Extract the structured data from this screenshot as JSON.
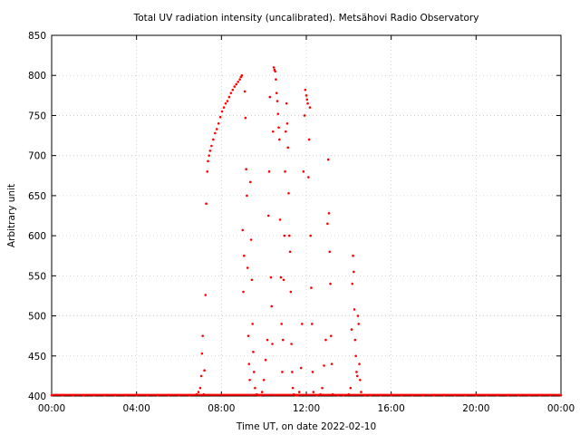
{
  "chart_data": {
    "type": "scatter",
    "title": "Total UV radiation intensity (uncalibrated). Metsähovi Radio Observatory",
    "xlabel": "Time UT, on date 2022-02-10",
    "ylabel": "Arbitrary unit",
    "xlim": [
      "00:00",
      "24:00"
    ],
    "ylim": [
      400,
      850
    ],
    "x_ticks": [
      "00:00",
      "04:00",
      "08:00",
      "12:00",
      "16:00",
      "20:00",
      "00:00"
    ],
    "y_ticks": [
      400,
      450,
      500,
      550,
      600,
      650,
      700,
      750,
      800,
      850
    ],
    "grid": true,
    "series": [
      {
        "color": "#ff0000",
        "marker": "dot",
        "points": [
          [
            "00:00",
            401
          ],
          [
            "00:30",
            401
          ],
          [
            "01:00",
            401
          ],
          [
            "01:30",
            401
          ],
          [
            "02:00",
            401
          ],
          [
            "02:30",
            401
          ],
          [
            "03:00",
            401
          ],
          [
            "03:30",
            401
          ],
          [
            "04:00",
            401
          ],
          [
            "04:30",
            401
          ],
          [
            "05:00",
            401
          ],
          [
            "05:30",
            401
          ],
          [
            "06:00",
            401
          ],
          [
            "06:30",
            401
          ],
          [
            "06:50",
            402
          ],
          [
            "06:55",
            405
          ],
          [
            "07:00",
            410
          ],
          [
            "07:03",
            425
          ],
          [
            "07:05",
            453
          ],
          [
            "07:07",
            475
          ],
          [
            "07:10",
            402
          ],
          [
            "07:12",
            432
          ],
          [
            "07:15",
            526
          ],
          [
            "07:17",
            640
          ],
          [
            "07:20",
            680
          ],
          [
            "07:22",
            693
          ],
          [
            "07:25",
            700
          ],
          [
            "07:28",
            706
          ],
          [
            "07:32",
            712
          ],
          [
            "07:37",
            720
          ],
          [
            "07:42",
            728
          ],
          [
            "07:47",
            733
          ],
          [
            "07:52",
            740
          ],
          [
            "07:57",
            748
          ],
          [
            "08:02",
            755
          ],
          [
            "08:07",
            760
          ],
          [
            "08:12",
            765
          ],
          [
            "08:17",
            768
          ],
          [
            "08:22",
            773
          ],
          [
            "08:27",
            778
          ],
          [
            "08:32",
            782
          ],
          [
            "08:37",
            786
          ],
          [
            "08:42",
            789
          ],
          [
            "08:47",
            792
          ],
          [
            "08:52",
            795
          ],
          [
            "08:55",
            798
          ],
          [
            "08:58",
            800
          ],
          [
            "09:00",
            607
          ],
          [
            "09:02",
            530
          ],
          [
            "09:04",
            575
          ],
          [
            "09:06",
            780
          ],
          [
            "09:08",
            747
          ],
          [
            "09:10",
            683
          ],
          [
            "09:12",
            650
          ],
          [
            "09:14",
            560
          ],
          [
            "09:16",
            475
          ],
          [
            "09:18",
            440
          ],
          [
            "09:20",
            420
          ],
          [
            "09:22",
            667
          ],
          [
            "09:24",
            595
          ],
          [
            "09:26",
            545
          ],
          [
            "09:28",
            490
          ],
          [
            "09:30",
            455
          ],
          [
            "09:32",
            430
          ],
          [
            "09:35",
            410
          ],
          [
            "09:40",
            402
          ],
          [
            "09:45",
            401
          ],
          [
            "09:50",
            401
          ],
          [
            "09:55",
            405
          ],
          [
            "10:00",
            420
          ],
          [
            "10:05",
            445
          ],
          [
            "10:10",
            470
          ],
          [
            "10:13",
            625
          ],
          [
            "10:15",
            680
          ],
          [
            "10:17",
            773
          ],
          [
            "10:20",
            548
          ],
          [
            "10:22",
            512
          ],
          [
            "10:24",
            465
          ],
          [
            "10:26",
            730
          ],
          [
            "10:28",
            810
          ],
          [
            "10:30",
            807
          ],
          [
            "10:32",
            805
          ],
          [
            "10:34",
            795
          ],
          [
            "10:36",
            778
          ],
          [
            "10:38",
            768
          ],
          [
            "10:40",
            752
          ],
          [
            "10:42",
            735
          ],
          [
            "10:44",
            720
          ],
          [
            "10:46",
            620
          ],
          [
            "10:48",
            548
          ],
          [
            "10:50",
            490
          ],
          [
            "10:52",
            430
          ],
          [
            "10:54",
            470
          ],
          [
            "10:56",
            545
          ],
          [
            "10:58",
            600
          ],
          [
            "11:00",
            680
          ],
          [
            "11:02",
            730
          ],
          [
            "11:04",
            765
          ],
          [
            "11:06",
            740
          ],
          [
            "11:08",
            710
          ],
          [
            "11:10",
            653
          ],
          [
            "11:12",
            600
          ],
          [
            "11:14",
            580
          ],
          [
            "11:16",
            530
          ],
          [
            "11:18",
            465
          ],
          [
            "11:20",
            430
          ],
          [
            "11:22",
            410
          ],
          [
            "11:25",
            402
          ],
          [
            "11:30",
            401
          ],
          [
            "11:35",
            401
          ],
          [
            "11:40",
            405
          ],
          [
            "11:45",
            435
          ],
          [
            "11:48",
            490
          ],
          [
            "11:52",
            680
          ],
          [
            "11:55",
            750
          ],
          [
            "11:57",
            782
          ],
          [
            "12:00",
            775
          ],
          [
            "12:02",
            770
          ],
          [
            "12:04",
            765
          ],
          [
            "12:06",
            673
          ],
          [
            "12:08",
            720
          ],
          [
            "12:10",
            760
          ],
          [
            "12:12",
            600
          ],
          [
            "12:14",
            535
          ],
          [
            "12:16",
            490
          ],
          [
            "12:18",
            430
          ],
          [
            "12:20",
            405
          ],
          [
            "12:30",
            401
          ],
          [
            "12:40",
            402
          ],
          [
            "12:45",
            410
          ],
          [
            "12:50",
            438
          ],
          [
            "12:55",
            470
          ],
          [
            "13:00",
            615
          ],
          [
            "13:02",
            695
          ],
          [
            "13:04",
            628
          ],
          [
            "13:06",
            580
          ],
          [
            "13:08",
            540
          ],
          [
            "13:10",
            475
          ],
          [
            "13:12",
            440
          ],
          [
            "13:15",
            402
          ],
          [
            "13:30",
            401
          ],
          [
            "13:45",
            401
          ],
          [
            "14:00",
            402
          ],
          [
            "14:05",
            410
          ],
          [
            "14:08",
            483
          ],
          [
            "14:10",
            540
          ],
          [
            "14:12",
            575
          ],
          [
            "14:14",
            555
          ],
          [
            "14:16",
            508
          ],
          [
            "14:18",
            470
          ],
          [
            "14:20",
            450
          ],
          [
            "14:22",
            430
          ],
          [
            "14:24",
            425
          ],
          [
            "14:26",
            500
          ],
          [
            "14:28",
            490
          ],
          [
            "14:30",
            440
          ],
          [
            "14:32",
            420
          ],
          [
            "14:35",
            405
          ],
          [
            "14:45",
            401
          ],
          [
            "15:00",
            401
          ],
          [
            "15:30",
            401
          ],
          [
            "16:00",
            401
          ],
          [
            "16:30",
            401
          ],
          [
            "17:00",
            401
          ],
          [
            "17:30",
            401
          ],
          [
            "18:00",
            401
          ],
          [
            "18:30",
            401
          ],
          [
            "19:00",
            401
          ],
          [
            "19:30",
            401
          ],
          [
            "20:00",
            401
          ],
          [
            "20:30",
            401
          ],
          [
            "21:00",
            401
          ],
          [
            "21:30",
            401
          ],
          [
            "22:00",
            401
          ],
          [
            "22:30",
            401
          ],
          [
            "23:00",
            401
          ],
          [
            "23:30",
            401
          ],
          [
            "24:00",
            401
          ]
        ]
      }
    ]
  }
}
